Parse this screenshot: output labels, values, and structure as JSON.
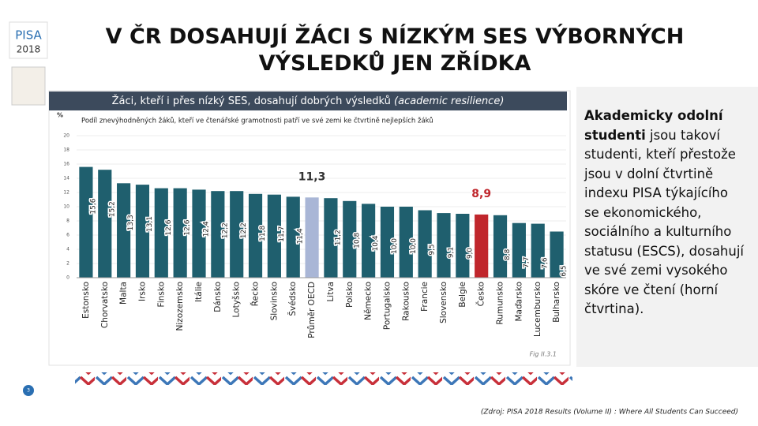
{
  "chart_data": {
    "type": "bar",
    "slide_title": "V ČR DOSAHUJÍ ŽÁCI S NÍZKÝM SES VÝBORNÝCH VÝSLEDKŮ JEN ZŘÍDKA",
    "title": "Žáci, kteří i přes nízký SES, dosahují dobrých výsledků",
    "title_note": "(academic resilience)",
    "subtitle": "Podíl znevýhodněných žáků, kteří ve čtenářské gramotnosti patří ve své zemi ke čtvrtině nejlepších žáků",
    "y_label": "%",
    "categories": [
      "Estonsko",
      "Chorvatsko",
      "Malta",
      "Irsko",
      "Finsko",
      "Nizozemsko",
      "Itálie",
      "Dánsko",
      "Lotyšsko",
      "Řecko",
      "Slovinsko",
      "Švédsko",
      "Průměr OECD",
      "Litva",
      "Polsko",
      "Německo",
      "Portugalsko",
      "Rakousko",
      "Francie",
      "Slovensko",
      "Belgie",
      "Česko",
      "Rumunsko",
      "Maďarsko",
      "Lucembursko",
      "Bulharsko"
    ],
    "values": [
      15.6,
      15.2,
      13.3,
      13.1,
      12.6,
      12.6,
      12.4,
      12.2,
      12.2,
      11.8,
      11.7,
      11.4,
      11.3,
      11.2,
      10.8,
      10.4,
      10.0,
      10.0,
      9.5,
      9.1,
      9.0,
      8.9,
      8.8,
      7.7,
      7.6,
      6.5
    ],
    "value_labels": [
      "15,6",
      "15,2",
      "13,3",
      "13,1",
      "12,6",
      "12,6",
      "12,4",
      "12,2",
      "12,2",
      "11,8",
      "11,7",
      "11,4",
      "11,3",
      "11,2",
      "10,8",
      "10,4",
      "10,0",
      "10,0",
      "9,5",
      "9,1",
      "9,0",
      "8,9",
      "8,8",
      "7,7",
      "7,6",
      "6,5"
    ],
    "colors": [
      "#1f5f6e",
      "#1f5f6e",
      "#1f5f6e",
      "#1f5f6e",
      "#1f5f6e",
      "#1f5f6e",
      "#1f5f6e",
      "#1f5f6e",
      "#1f5f6e",
      "#1f5f6e",
      "#1f5f6e",
      "#1f5f6e",
      "#a9b6d6",
      "#1f5f6e",
      "#1f5f6e",
      "#1f5f6e",
      "#1f5f6e",
      "#1f5f6e",
      "#1f5f6e",
      "#1f5f6e",
      "#1f5f6e",
      "#c0262c",
      "#1f5f6e",
      "#1f5f6e",
      "#1f5f6e",
      "#1f5f6e"
    ],
    "ylim": [
      0,
      20
    ],
    "yticks": [
      0,
      2,
      4,
      6,
      8,
      10,
      12,
      14,
      16,
      18,
      20
    ],
    "grid": true,
    "figure_ref": "Fig II.3.1",
    "side_text_bold": "Akademicky odolní studenti",
    "side_text": "jsou takoví studenti, kteří přestože jsou v dolní čtvrtině indexu PISA týkajícího se ekonomického, sociálního a kulturního statusu (ESCS), dosahují ve své zemi vysokého skóre ve čtení (horní čtvrtina).",
    "source": "(Zdroj: PISA 2018 Results (Volume II) : Where All Students Can Succeed)",
    "page_number": "3",
    "logo": "PISA",
    "logo_year": "2018"
  }
}
